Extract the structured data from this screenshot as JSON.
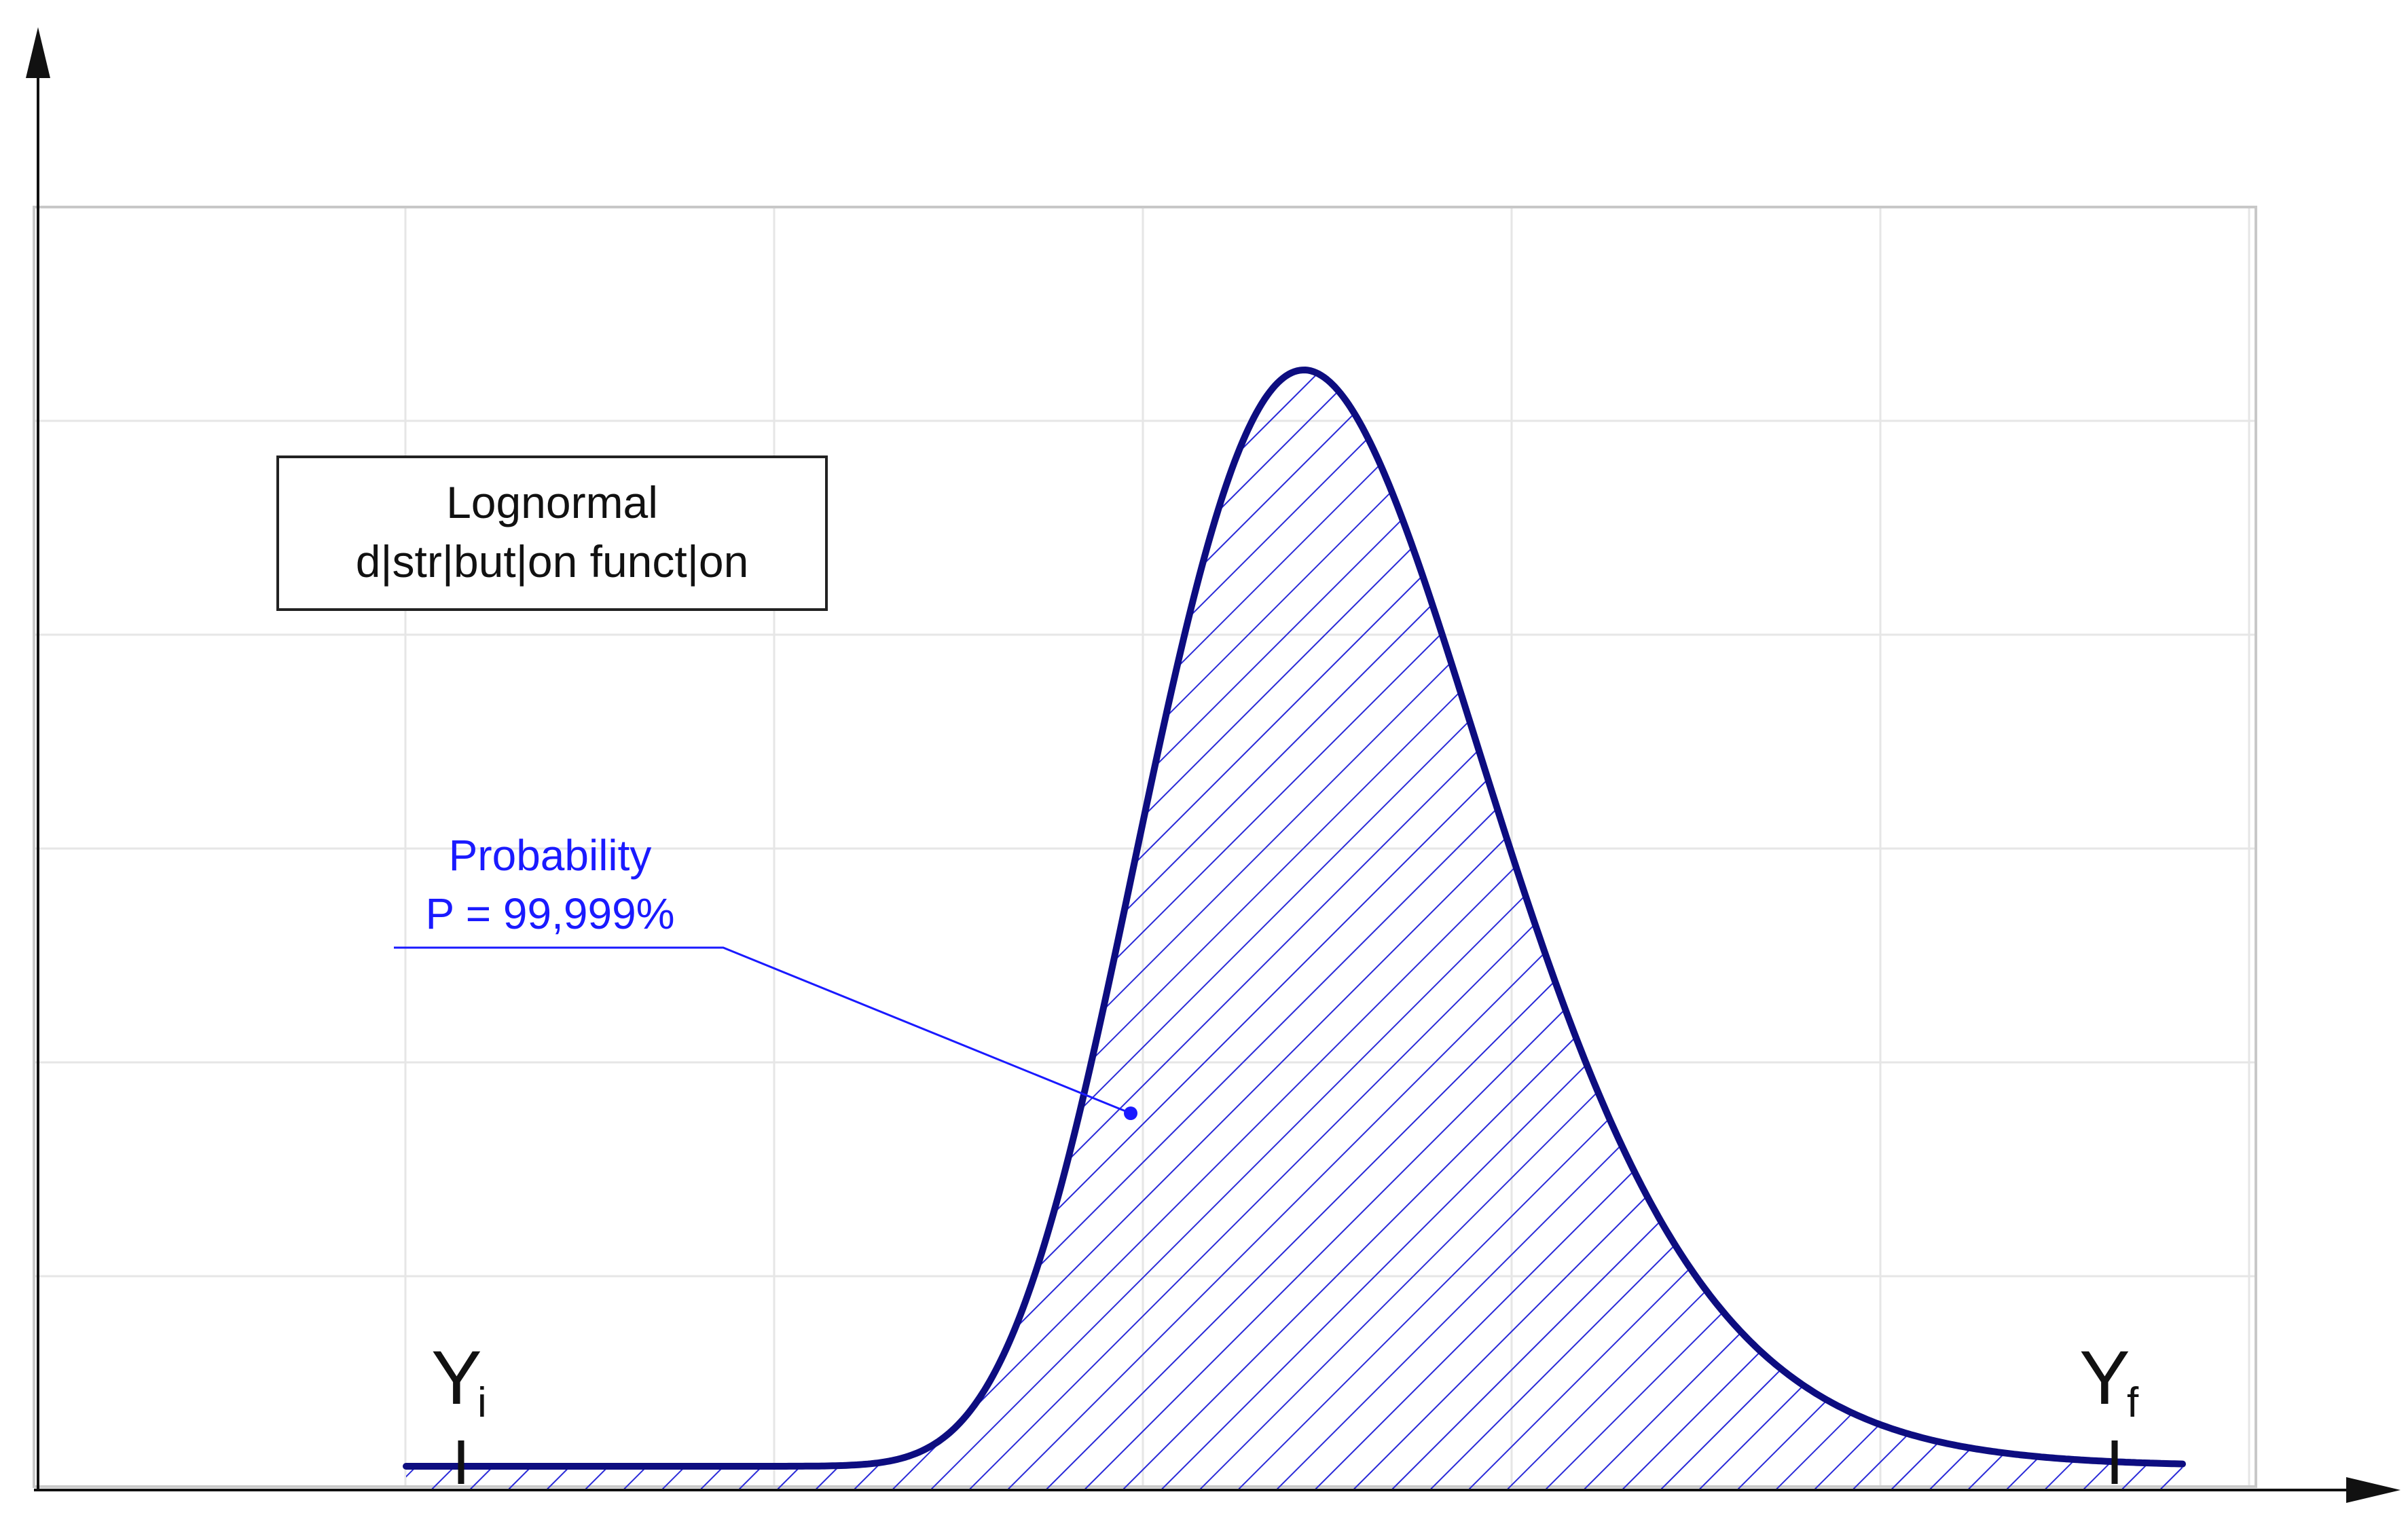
{
  "chart_data": {
    "type": "area",
    "title": "",
    "xlabel": "",
    "ylabel": "",
    "grid": true,
    "legend": {
      "position": "top-left",
      "line1": "Lognormal",
      "line2": "d|str|but|on funct|on"
    },
    "annotation": {
      "line1": "Probability",
      "line2": "P = 99,999%"
    },
    "markers": [
      {
        "name": "Yi",
        "letter": "Y",
        "sub": "i"
      },
      {
        "name": "Yf",
        "letter": "Y",
        "sub": "f"
      }
    ],
    "series": [
      {
        "fill": "hatched"
      }
    ]
  },
  "colors": {
    "curve": "#0d0d80",
    "hatch": "#2a2ad8",
    "annotation": "#1a1aff",
    "grid": "#e6e6e6",
    "axis": "#111111"
  }
}
